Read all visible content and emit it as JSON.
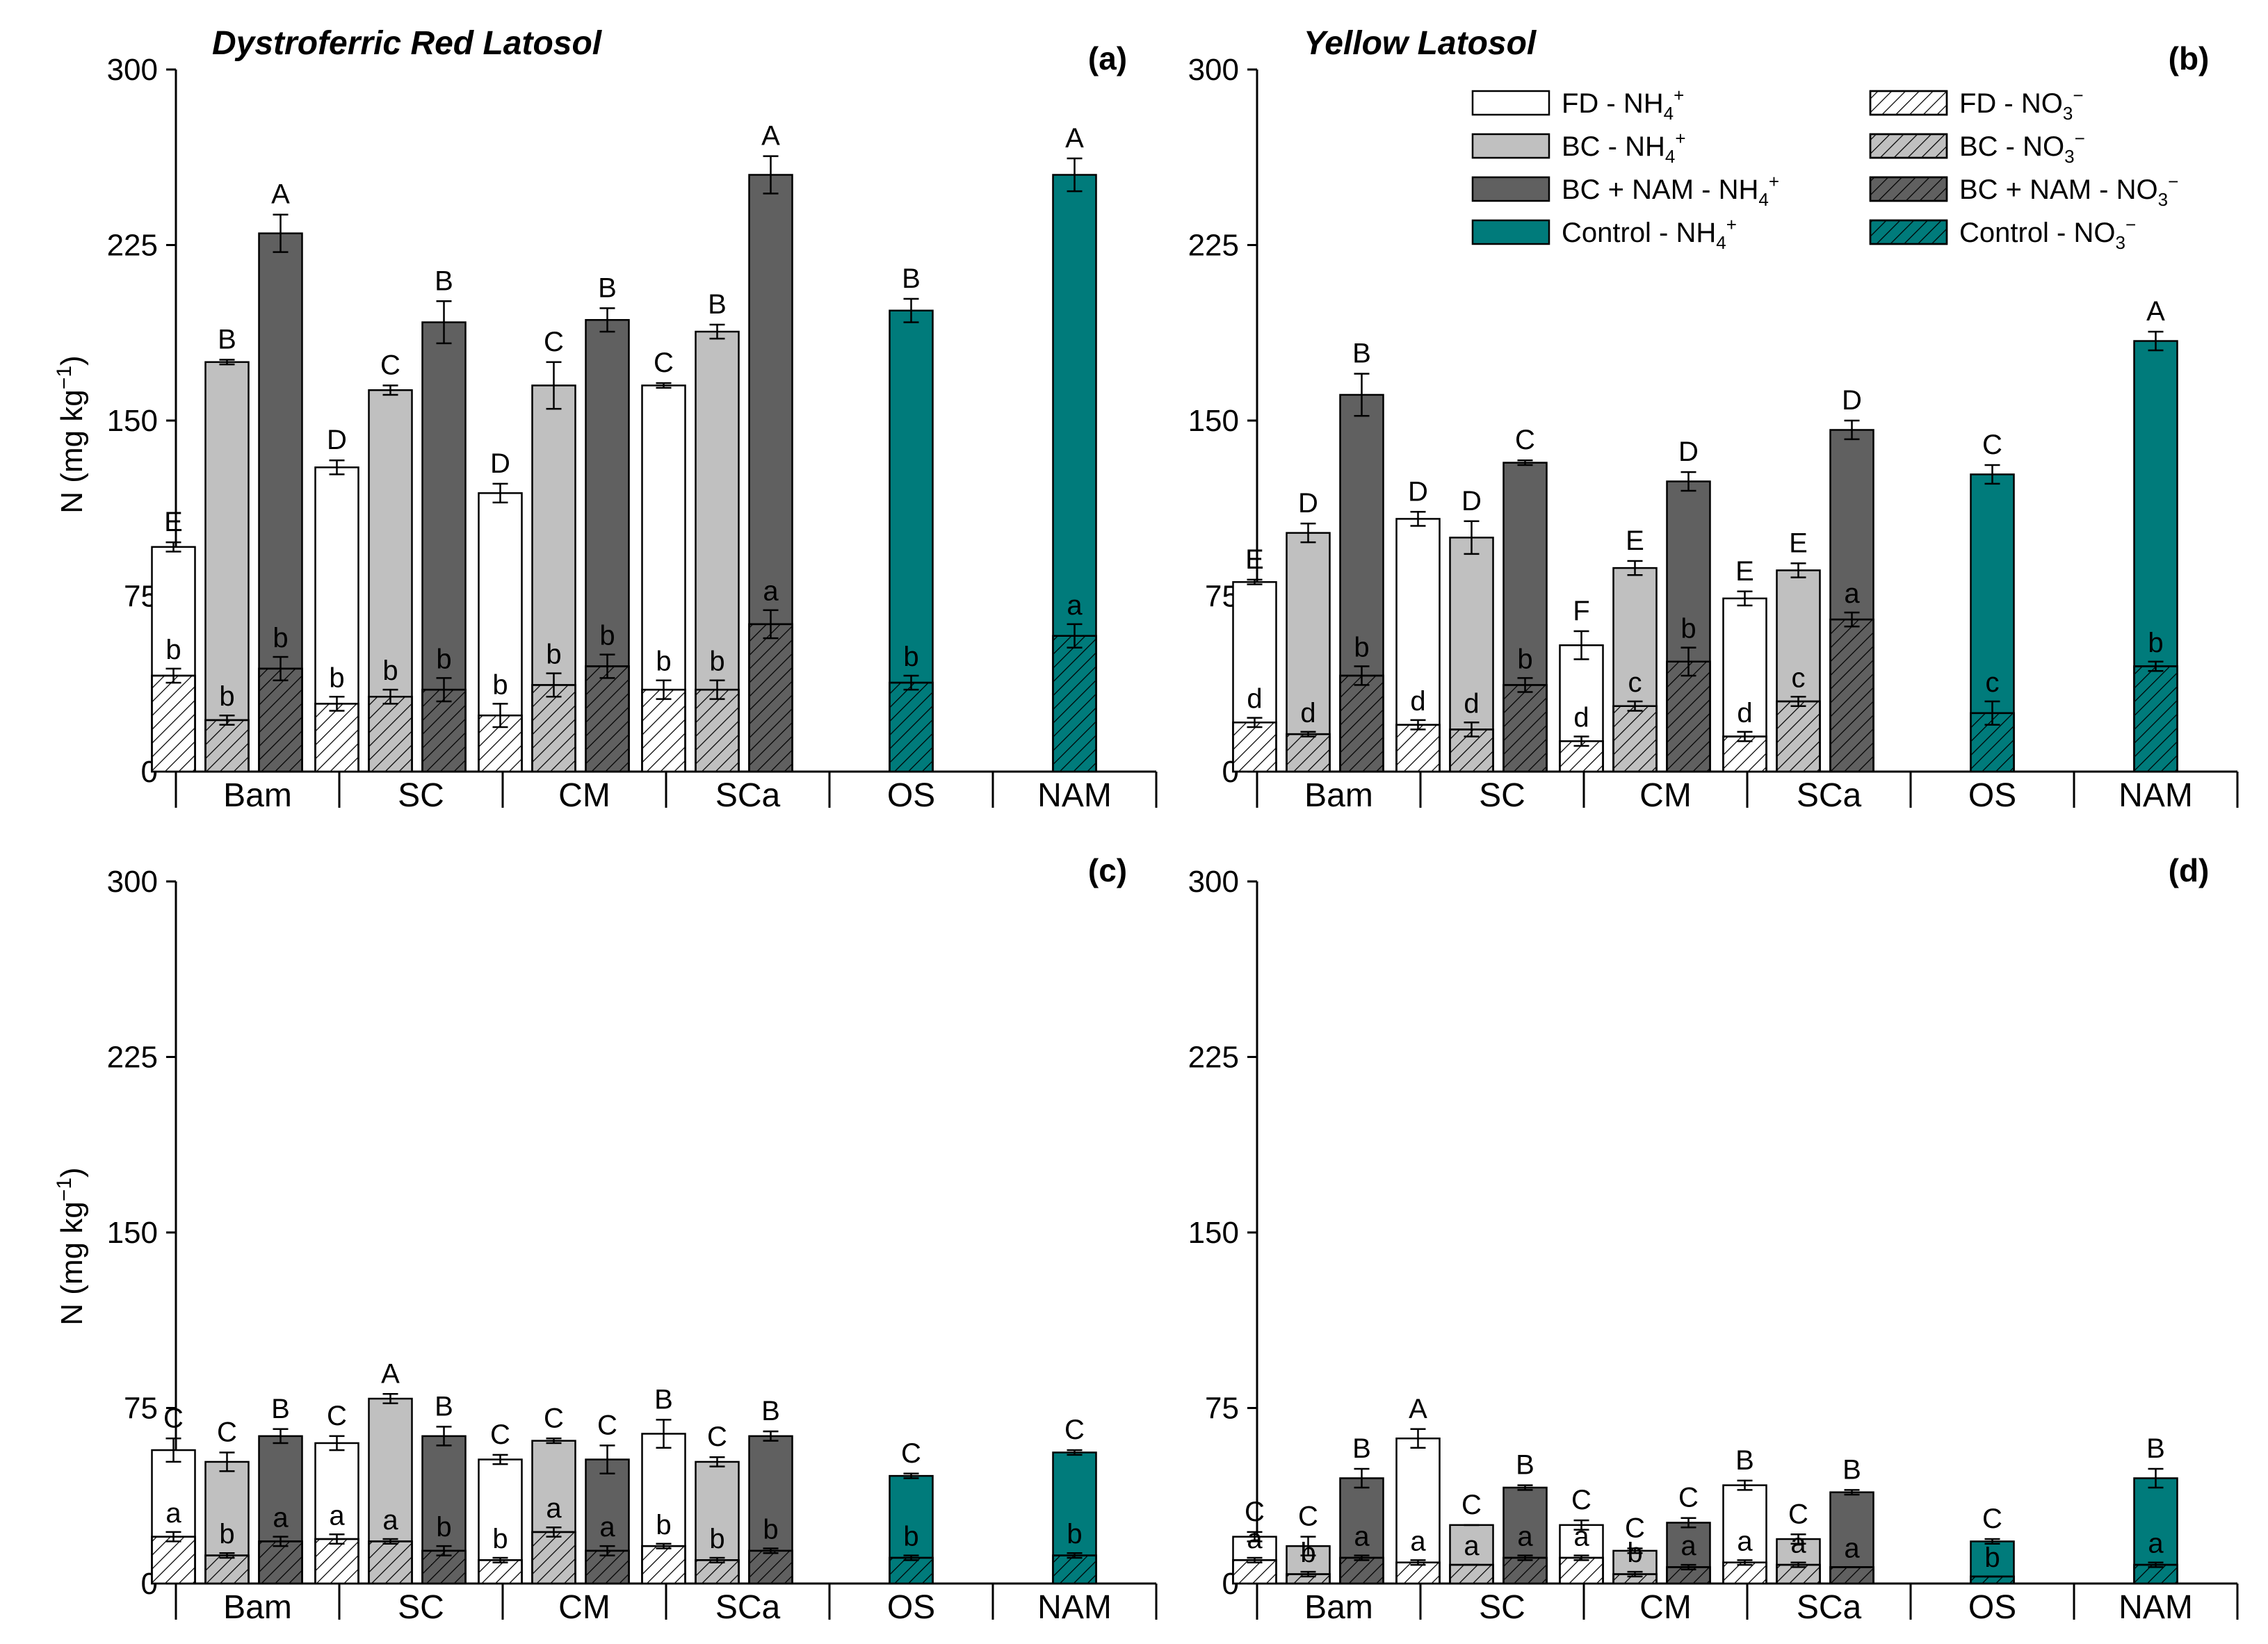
{
  "soil_titles": [
    "Dystroferric Red Latosol",
    "Yellow Latosol"
  ],
  "legend": [
    {
      "label": "FD - NH",
      "sub": "4",
      "sup": "+",
      "fill": "#ffffff",
      "hatch": false
    },
    {
      "label": "BC - NH",
      "sub": "4",
      "sup": "+",
      "fill": "#c0c0c0",
      "hatch": false
    },
    {
      "label": "BC + NAM - NH",
      "sub": "4",
      "sup": "+",
      "fill": "#606060",
      "hatch": false
    },
    {
      "label": "Control - NH",
      "sub": "4",
      "sup": "+",
      "fill": "#007b7b",
      "hatch": false
    },
    {
      "label": "FD - NO",
      "sub": "3",
      "sup": "−",
      "fill": "#ffffff",
      "hatch": true
    },
    {
      "label": "BC - NO",
      "sub": "3",
      "sup": "−",
      "fill": "#c0c0c0",
      "hatch": true
    },
    {
      "label": "BC + NAM - NO",
      "sub": "3",
      "sup": "−",
      "fill": "#606060",
      "hatch": true
    },
    {
      "label": "Control - NO",
      "sub": "3",
      "sup": "−",
      "fill": "#007b7b",
      "hatch": true
    }
  ],
  "colors": {
    "FD": "#ffffff",
    "BC": "#c0c0c0",
    "BCNAM": "#606060",
    "Control": "#007b7b"
  },
  "chart_data": [
    {
      "panel": "(a)",
      "type": "bar",
      "stacked": true,
      "ylabel": "N (mg kg",
      "ylabel_sup": "−1",
      "ylabel_end": ")",
      "ylim": [
        0,
        300
      ],
      "yticks": [
        0,
        75,
        150,
        225,
        300
      ],
      "categories": [
        "Bam",
        "SC",
        "CM",
        "SCa",
        "OS",
        "NAM"
      ],
      "series": [
        {
          "name": "FD",
          "cats": [
            "Bam",
            "SC",
            "CM",
            "SCa"
          ],
          "total": [
            96,
            130,
            119,
            165
          ],
          "total_err": [
            2,
            3,
            4,
            1
          ],
          "nitrate": [
            41,
            29,
            24,
            35
          ],
          "nitrate_err": [
            3,
            3,
            5,
            4
          ],
          "upper_letters": [
            "E",
            "D",
            "D",
            "C"
          ],
          "lower_letters": [
            "b",
            "b",
            "b",
            "b"
          ]
        },
        {
          "name": "BC",
          "cats": [
            "Bam",
            "SC",
            "CM",
            "SCa"
          ],
          "total": [
            175,
            163,
            165,
            188
          ],
          "total_err": [
            1,
            2,
            10,
            3
          ],
          "nitrate": [
            22,
            32,
            37,
            35
          ],
          "nitrate_err": [
            2,
            3,
            5,
            4
          ],
          "upper_letters": [
            "B",
            "C",
            "C",
            "B"
          ],
          "lower_letters": [
            "b",
            "b",
            "b",
            "b"
          ]
        },
        {
          "name": "BCNAM",
          "cats": [
            "Bam",
            "SC",
            "CM",
            "SCa"
          ],
          "total": [
            230,
            192,
            193,
            255
          ],
          "total_err": [
            8,
            9,
            5,
            8
          ],
          "nitrate": [
            44,
            35,
            45,
            63
          ],
          "nitrate_err": [
            5,
            5,
            5,
            6
          ],
          "upper_letters": [
            "A",
            "B",
            "B",
            "A"
          ],
          "lower_letters": [
            "b",
            "b",
            "b",
            "a"
          ]
        },
        {
          "name": "Control",
          "cats": [
            "OS",
            "NAM"
          ],
          "total": [
            197,
            255
          ],
          "total_err": [
            5,
            7
          ],
          "nitrate": [
            38,
            58
          ],
          "nitrate_err": [
            3,
            5
          ],
          "upper_letters": [
            "B",
            "A"
          ],
          "lower_letters": [
            "b",
            "a"
          ]
        }
      ]
    },
    {
      "panel": "(b)",
      "type": "bar",
      "stacked": true,
      "ylim": [
        0,
        300
      ],
      "yticks": [
        0,
        75,
        150,
        225,
        300
      ],
      "categories": [
        "Bam",
        "SC",
        "CM",
        "SCa",
        "OS",
        "NAM"
      ],
      "series": [
        {
          "name": "FD",
          "cats": [
            "Bam",
            "SC",
            "CM",
            "SCa"
          ],
          "total": [
            81,
            108,
            54,
            74
          ],
          "total_err": [
            1,
            3,
            6,
            3
          ],
          "nitrate": [
            21,
            20,
            13,
            15
          ],
          "nitrate_err": [
            2,
            2,
            2,
            2
          ],
          "upper_letters": [
            "E",
            "D",
            "F",
            "E"
          ],
          "lower_letters": [
            "d",
            "d",
            "d",
            "d"
          ]
        },
        {
          "name": "BC",
          "cats": [
            "Bam",
            "SC",
            "CM",
            "SCa"
          ],
          "total": [
            102,
            100,
            87,
            86
          ],
          "total_err": [
            4,
            7,
            3,
            3
          ],
          "nitrate": [
            16,
            18,
            28,
            30
          ],
          "nitrate_err": [
            1,
            3,
            2,
            2
          ],
          "upper_letters": [
            "D",
            "D",
            "E",
            "E"
          ],
          "lower_letters": [
            "d",
            "d",
            "c",
            "c"
          ]
        },
        {
          "name": "BCNAM",
          "cats": [
            "Bam",
            "SC",
            "CM",
            "SCa"
          ],
          "total": [
            161,
            132,
            124,
            146
          ],
          "total_err": [
            9,
            1,
            4,
            4
          ],
          "nitrate": [
            41,
            37,
            47,
            65
          ],
          "nitrate_err": [
            4,
            3,
            6,
            3
          ],
          "upper_letters": [
            "B",
            "C",
            "D",
            "D"
          ],
          "lower_letters": [
            "b",
            "b",
            "b",
            "a"
          ]
        },
        {
          "name": "Control",
          "cats": [
            "OS",
            "NAM"
          ],
          "total": [
            127,
            184
          ],
          "total_err": [
            4,
            4
          ],
          "nitrate": [
            25,
            45
          ],
          "nitrate_err": [
            5,
            2
          ],
          "upper_letters": [
            "C",
            "A"
          ],
          "lower_letters": [
            "c",
            "b"
          ]
        }
      ]
    },
    {
      "panel": "(c)",
      "type": "bar",
      "stacked": true,
      "ylabel": "N (mg kg",
      "ylabel_sup": "−1",
      "ylabel_end": ")",
      "ylim": [
        0,
        300
      ],
      "yticks": [
        0,
        75,
        150,
        225,
        300
      ],
      "categories": [
        "Bam",
        "SC",
        "CM",
        "SCa",
        "OS",
        "NAM"
      ],
      "series": [
        {
          "name": "FD",
          "cats": [
            "Bam",
            "SC",
            "CM",
            "SCa"
          ],
          "total": [
            57,
            60,
            53,
            64
          ],
          "total_err": [
            5,
            3,
            2,
            6
          ],
          "nitrate": [
            20,
            19,
            10,
            16
          ],
          "nitrate_err": [
            2,
            2,
            1,
            1
          ],
          "upper_letters": [
            "C",
            "C",
            "C",
            "B"
          ],
          "lower_letters": [
            "a",
            "a",
            "b",
            "b"
          ]
        },
        {
          "name": "BC",
          "cats": [
            "Bam",
            "SC",
            "CM",
            "SCa"
          ],
          "total": [
            52,
            79,
            61,
            52
          ],
          "total_err": [
            4,
            2,
            1,
            2
          ],
          "nitrate": [
            12,
            18,
            22,
            10
          ],
          "nitrate_err": [
            1,
            1,
            2,
            1
          ],
          "upper_letters": [
            "C",
            "A",
            "C",
            "C"
          ],
          "lower_letters": [
            "b",
            "a",
            "a",
            "b"
          ]
        },
        {
          "name": "BCNAM",
          "cats": [
            "Bam",
            "SC",
            "CM",
            "SCa"
          ],
          "total": [
            63,
            63,
            53,
            63
          ],
          "total_err": [
            3,
            4,
            6,
            2
          ],
          "nitrate": [
            18,
            14,
            14,
            14
          ],
          "nitrate_err": [
            2,
            2,
            2,
            1
          ],
          "upper_letters": [
            "B",
            "B",
            "C",
            "B"
          ],
          "lower_letters": [
            "a",
            "b",
            "a",
            "b"
          ]
        },
        {
          "name": "Control",
          "cats": [
            "OS",
            "NAM"
          ],
          "total": [
            46,
            56
          ],
          "total_err": [
            1,
            1
          ],
          "nitrate": [
            11,
            12
          ],
          "nitrate_err": [
            1,
            1
          ],
          "upper_letters": [
            "C",
            "C"
          ],
          "lower_letters": [
            "b",
            "b"
          ]
        }
      ]
    },
    {
      "panel": "(d)",
      "type": "bar",
      "stacked": true,
      "ylim": [
        0,
        300
      ],
      "yticks": [
        0,
        75,
        150,
        225,
        300
      ],
      "categories": [
        "Bam",
        "SC",
        "CM",
        "SCa",
        "OS",
        "NAM"
      ],
      "series": [
        {
          "name": "FD",
          "cats": [
            "Bam",
            "SC",
            "CM",
            "SCa"
          ],
          "total": [
            20,
            62,
            25,
            42
          ],
          "total_err": [
            2,
            4,
            2,
            2
          ],
          "nitrate": [
            10,
            9,
            11,
            9
          ],
          "nitrate_err": [
            1,
            1,
            1,
            1
          ],
          "upper_letters": [
            "C",
            "A",
            "C",
            "B"
          ],
          "lower_letters": [
            "a",
            "a",
            "a",
            "a"
          ]
        },
        {
          "name": "BC",
          "cats": [
            "Bam",
            "SC",
            "CM",
            "SCa"
          ],
          "total": [
            16,
            25,
            14,
            19
          ],
          "total_err": [
            4,
            0,
            1,
            2
          ],
          "nitrate": [
            4,
            8,
            4,
            8
          ],
          "nitrate_err": [
            1,
            0,
            1,
            1
          ],
          "upper_letters": [
            "C",
            "C",
            "C",
            "C"
          ],
          "lower_letters": [
            "b",
            "a",
            "b",
            "a"
          ]
        },
        {
          "name": "BCNAM",
          "cats": [
            "Bam",
            "SC",
            "CM",
            "SCa"
          ],
          "total": [
            45,
            41,
            26,
            39
          ],
          "total_err": [
            4,
            1,
            2,
            1
          ],
          "nitrate": [
            11,
            11,
            7,
            7
          ],
          "nitrate_err": [
            1,
            1,
            1,
            0
          ],
          "upper_letters": [
            "B",
            "B",
            "C",
            "B"
          ],
          "lower_letters": [
            "a",
            "a",
            "a",
            "a"
          ]
        },
        {
          "name": "Control",
          "cats": [
            "OS",
            "NAM"
          ],
          "total": [
            18,
            45
          ],
          "total_err": [
            1,
            4
          ],
          "nitrate": [
            3,
            8
          ],
          "nitrate_err": [
            0,
            1
          ],
          "upper_letters": [
            "C",
            "B"
          ],
          "lower_letters": [
            "b",
            "a"
          ]
        }
      ]
    }
  ]
}
